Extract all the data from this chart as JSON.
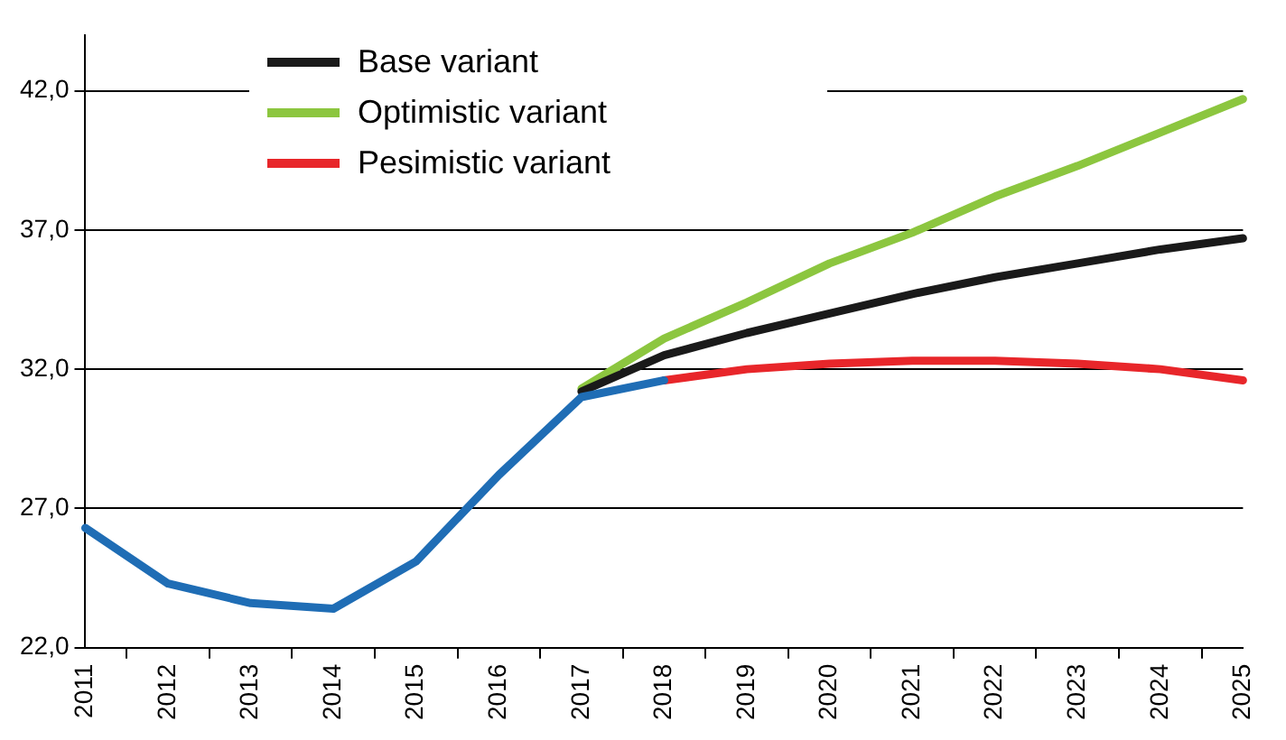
{
  "chart_data": {
    "type": "line",
    "categories": [
      "2011",
      "2012",
      "2013",
      "2014",
      "2015",
      "2016",
      "2017",
      "2018",
      "2019",
      "2020",
      "2021",
      "2022",
      "2023",
      "2024",
      "2025"
    ],
    "series": [
      {
        "color": "#1f6db5",
        "values": [
          26.3,
          24.3,
          23.6,
          23.4,
          25.1,
          28.2,
          31.0,
          31.6,
          null,
          null,
          null,
          null,
          null,
          null,
          null
        ]
      },
      {
        "name": "Base variant",
        "color": "#1a1a1a",
        "values": [
          null,
          null,
          null,
          null,
          null,
          null,
          31.2,
          32.5,
          33.3,
          34.0,
          34.7,
          35.3,
          35.8,
          36.3,
          36.7
        ]
      },
      {
        "name": "Optimistic variant",
        "color": "#8cc63f",
        "values": [
          null,
          null,
          null,
          null,
          null,
          null,
          31.3,
          33.1,
          34.4,
          35.8,
          36.9,
          38.2,
          39.3,
          40.5,
          41.7
        ]
      },
      {
        "name": "Pesimistic variant",
        "color": "#e8262a",
        "values": [
          null,
          null,
          null,
          null,
          null,
          null,
          null,
          31.6,
          32.0,
          32.2,
          32.3,
          32.3,
          32.2,
          32.0,
          31.6
        ]
      }
    ],
    "ylim": [
      22,
      44
    ],
    "yticks": [
      {
        "value": 22,
        "label": "22,0"
      },
      {
        "value": 27,
        "label": "27,0"
      },
      {
        "value": 32,
        "label": "32,0"
      },
      {
        "value": 37,
        "label": "37,0"
      },
      {
        "value": 42,
        "label": "42,0"
      }
    ],
    "grid": "y",
    "legend": "top left",
    "marker": "none",
    "line_style": "solid"
  }
}
